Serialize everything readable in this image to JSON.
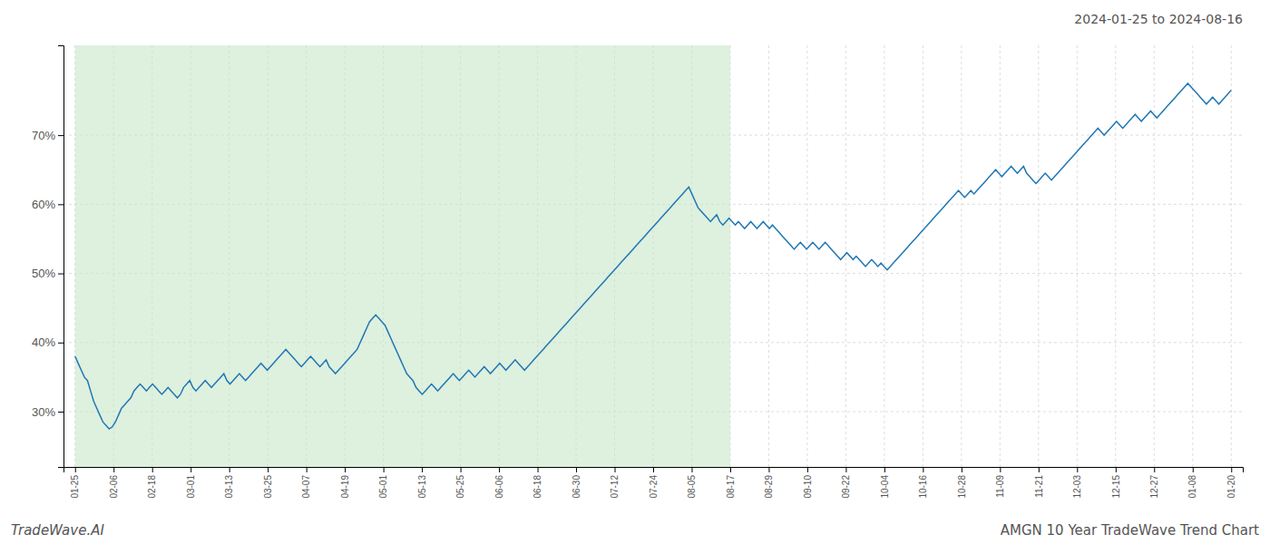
{
  "chart_data": {
    "type": "line",
    "title": "2024-01-25 to 2024-08-16",
    "annotations": [
      "TradeWave.AI",
      "AMGN 10 Year TradeWave Trend Chart"
    ],
    "color": "#1f77b4",
    "grid": true,
    "shaded_span": {
      "x": [
        0,
        211.3667
      ],
      "color": "#c8e6c8"
    },
    "xlim": [
      -3.73,
      376.73
    ],
    "xticks": [
      {
        "value": 0,
        "label": "01-25"
      },
      {
        "value": 12.4333,
        "label": "02-06"
      },
      {
        "value": 24.8667,
        "label": "02-18"
      },
      {
        "value": 37.3,
        "label": "03-01"
      },
      {
        "value": 49.7333,
        "label": "03-13"
      },
      {
        "value": 62.1667,
        "label": "03-25"
      },
      {
        "value": 74.6,
        "label": "04-07"
      },
      {
        "value": 87.0333,
        "label": "04-19"
      },
      {
        "value": 99.4667,
        "label": "05-01"
      },
      {
        "value": 111.9,
        "label": "05-13"
      },
      {
        "value": 124.3333,
        "label": "05-25"
      },
      {
        "value": 136.7667,
        "label": "06-06"
      },
      {
        "value": 149.2,
        "label": "06-18"
      },
      {
        "value": 161.6333,
        "label": "06-30"
      },
      {
        "value": 174.0667,
        "label": "07-12"
      },
      {
        "value": 186.5,
        "label": "07-24"
      },
      {
        "value": 198.9333,
        "label": "08-05"
      },
      {
        "value": 211.3667,
        "label": "08-17"
      },
      {
        "value": 223.8,
        "label": "08-29"
      },
      {
        "value": 236.2333,
        "label": "09-10"
      },
      {
        "value": 248.6667,
        "label": "09-22"
      },
      {
        "value": 261.1,
        "label": "10-04"
      },
      {
        "value": 273.5333,
        "label": "10-16"
      },
      {
        "value": 285.9667,
        "label": "10-28"
      },
      {
        "value": 298.4,
        "label": "11-09"
      },
      {
        "value": 310.8333,
        "label": "11-21"
      },
      {
        "value": 323.2667,
        "label": "12-03"
      },
      {
        "value": 335.7,
        "label": "12-15"
      },
      {
        "value": 348.1333,
        "label": "12-27"
      },
      {
        "value": 360.5667,
        "label": "01-08"
      },
      {
        "value": 373,
        "label": "01-20"
      }
    ],
    "ylim": [
      22,
      83
    ],
    "yticks": [
      {
        "value": 30,
        "label": "30%"
      },
      {
        "value": 40,
        "label": "40%"
      },
      {
        "value": 50,
        "label": "50%"
      },
      {
        "value": 60,
        "label": "60%"
      },
      {
        "value": 70,
        "label": "70%"
      }
    ],
    "x": [
      0,
      1,
      2,
      3,
      4,
      5,
      6,
      7,
      8,
      9,
      10,
      11,
      12,
      13,
      14,
      15,
      16,
      17,
      18,
      19,
      20,
      21,
      22,
      23,
      24,
      25,
      26,
      27,
      28,
      29,
      30,
      31,
      32,
      33,
      34,
      35,
      36,
      37,
      38,
      39,
      40,
      41,
      42,
      43,
      44,
      45,
      46,
      47,
      48,
      49,
      50,
      51,
      52,
      53,
      54,
      55,
      56,
      57,
      58,
      59,
      60,
      61,
      62,
      63,
      64,
      65,
      66,
      67,
      68,
      69,
      70,
      71,
      72,
      73,
      74,
      75,
      76,
      77,
      78,
      79,
      80,
      81,
      82,
      83,
      84,
      85,
      86,
      87,
      88,
      89,
      90,
      91,
      92,
      93,
      94,
      95,
      96,
      97,
      98,
      99,
      100,
      101,
      102,
      103,
      104,
      105,
      106,
      107,
      108,
      109,
      110,
      111,
      112,
      113,
      114,
      115,
      116,
      117,
      118,
      119,
      120,
      121,
      122,
      123,
      124,
      125,
      126,
      127,
      128,
      129,
      130,
      131,
      132,
      133,
      134,
      135,
      136,
      137,
      138,
      139,
      140,
      141,
      142,
      143,
      144,
      145,
      146,
      147,
      148,
      149,
      150,
      151,
      152,
      153,
      154,
      155,
      156,
      157,
      158,
      159,
      160,
      161,
      162,
      163,
      164,
      165,
      166,
      167,
      168,
      169,
      170,
      171,
      172,
      173,
      174,
      175,
      176,
      177,
      178,
      179,
      180,
      181,
      182,
      183,
      184,
      185,
      186,
      187,
      188,
      189,
      190,
      191,
      192,
      193,
      194,
      195,
      196,
      197,
      198,
      199,
      200,
      201,
      202,
      203,
      204,
      205,
      206,
      207,
      208,
      209,
      210,
      211,
      212,
      213,
      214,
      215,
      216,
      217,
      218,
      219,
      220,
      221,
      222,
      223,
      224,
      225,
      226,
      227,
      228,
      229,
      230,
      231,
      232,
      233,
      234,
      235,
      236,
      237,
      238,
      239,
      240,
      241,
      242,
      243,
      244,
      245,
      246,
      247,
      248,
      249,
      250,
      251,
      252,
      253,
      254,
      255,
      256,
      257,
      258,
      259,
      260,
      261,
      262,
      263,
      264,
      265,
      266,
      267,
      268,
      269,
      270,
      271,
      272,
      273,
      274,
      275,
      276,
      277,
      278,
      279,
      280,
      281,
      282,
      283,
      284,
      285,
      286,
      287,
      288,
      289,
      290,
      291,
      292,
      293,
      294,
      295,
      296,
      297,
      298,
      299,
      300,
      301,
      302,
      303,
      304,
      305,
      306,
      307,
      308,
      309,
      310,
      311,
      312,
      313,
      314,
      315,
      316,
      317,
      318,
      319,
      320,
      321,
      322,
      323,
      324,
      325,
      326,
      327,
      328,
      329,
      330,
      331,
      332,
      333,
      334,
      335,
      336,
      337,
      338,
      339,
      340,
      341,
      342,
      343,
      344,
      345,
      346,
      347,
      348,
      349,
      350,
      351,
      352,
      353,
      354,
      355,
      356,
      357,
      358,
      359,
      360,
      361,
      362,
      363,
      364,
      365,
      366,
      367,
      368,
      369,
      370,
      371,
      372,
      373
    ],
    "values": [
      38.0,
      37.0,
      36.0,
      35.0,
      34.5,
      33.0,
      31.5,
      30.5,
      29.5,
      28.5,
      28.0,
      27.5,
      27.8,
      28.5,
      29.5,
      30.5,
      31.0,
      31.5,
      32.0,
      33.0,
      33.5,
      34.0,
      33.5,
      33.0,
      33.5,
      34.0,
      33.5,
      33.0,
      32.5,
      33.0,
      33.5,
      33.0,
      32.5,
      32.0,
      32.5,
      33.5,
      34.0,
      34.5,
      33.5,
      33.0,
      33.5,
      34.0,
      34.5,
      34.0,
      33.5,
      34.0,
      34.5,
      35.0,
      35.5,
      34.5,
      34.0,
      34.5,
      35.0,
      35.5,
      35.0,
      34.5,
      35.0,
      35.5,
      36.0,
      36.5,
      37.0,
      36.5,
      36.0,
      36.5,
      37.0,
      37.5,
      38.0,
      38.5,
      39.0,
      38.5,
      38.0,
      37.5,
      37.0,
      36.5,
      37.0,
      37.5,
      38.0,
      37.5,
      37.0,
      36.5,
      37.0,
      37.5,
      36.5,
      36.0,
      35.5,
      36.0,
      36.5,
      37.0,
      37.5,
      38.0,
      38.5,
      39.0,
      40.0,
      41.0,
      42.0,
      43.0,
      43.5,
      44.0,
      43.5,
      43.0,
      42.5,
      41.5,
      40.5,
      39.5,
      38.5,
      37.5,
      36.5,
      35.5,
      35.0,
      34.5,
      33.5,
      33.0,
      32.5,
      33.0,
      33.5,
      34.0,
      33.5,
      33.0,
      33.5,
      34.0,
      34.5,
      35.0,
      35.5,
      35.0,
      34.5,
      35.0,
      35.5,
      36.0,
      35.5,
      35.0,
      35.5,
      36.0,
      36.5,
      36.0,
      35.5,
      36.0,
      36.5,
      37.0,
      36.5,
      36.0,
      36.5,
      37.0,
      37.5,
      37.0,
      36.5,
      36.0,
      36.5,
      37.0,
      37.5,
      38.0,
      38.5,
      39.0,
      39.5,
      40.0,
      40.5,
      41.0,
      41.5,
      42.0,
      42.5,
      43.0,
      43.5,
      44.0,
      44.5,
      45.0,
      45.5,
      46.0,
      46.5,
      47.0,
      47.5,
      48.0,
      48.5,
      49.0,
      49.5,
      50.0,
      50.5,
      51.0,
      51.5,
      52.0,
      52.5,
      53.0,
      53.5,
      54.0,
      54.5,
      55.0,
      55.5,
      56.0,
      56.5,
      57.0,
      57.5,
      58.0,
      58.5,
      59.0,
      59.5,
      60.0,
      60.5,
      61.0,
      61.5,
      62.0,
      62.5,
      61.5,
      60.5,
      59.5,
      59.0,
      58.5,
      58.0,
      57.5,
      58.0,
      58.5,
      57.5,
      57.0,
      57.5,
      58.0,
      57.5,
      57.0,
      57.5,
      57.0,
      56.5,
      57.0,
      57.5,
      57.0,
      56.5,
      57.0,
      57.5,
      57.0,
      56.5,
      57.0,
      56.5,
      56.0,
      55.5,
      55.0,
      54.5,
      54.0,
      53.5,
      54.0,
      54.5,
      54.0,
      53.5,
      54.0,
      54.5,
      54.0,
      53.5,
      54.0,
      54.5,
      54.0,
      53.5,
      53.0,
      52.5,
      52.0,
      52.5,
      53.0,
      52.5,
      52.0,
      52.5,
      52.0,
      51.5,
      51.0,
      51.5,
      52.0,
      51.5,
      51.0,
      51.5,
      51.0,
      50.5,
      51.0,
      51.5,
      52.0,
      52.5,
      53.0,
      53.5,
      54.0,
      54.5,
      55.0,
      55.5,
      56.0,
      56.5,
      57.0,
      57.5,
      58.0,
      58.5,
      59.0,
      59.5,
      60.0,
      60.5,
      61.0,
      61.5,
      62.0,
      61.5,
      61.0,
      61.5,
      62.0,
      61.5,
      62.0,
      62.5,
      63.0,
      63.5,
      64.0,
      64.5,
      65.0,
      64.5,
      64.0,
      64.5,
      65.0,
      65.5,
      65.0,
      64.5,
      65.0,
      65.5,
      64.5,
      64.0,
      63.5,
      63.0,
      63.5,
      64.0,
      64.5,
      64.0,
      63.5,
      64.0,
      64.5,
      65.0,
      65.5,
      66.0,
      66.5,
      67.0,
      67.5,
      68.0,
      68.5,
      69.0,
      69.5,
      70.0,
      70.5,
      71.0,
      70.5,
      70.0,
      70.5,
      71.0,
      71.5,
      72.0,
      71.5,
      71.0,
      71.5,
      72.0,
      72.5,
      73.0,
      72.5,
      72.0,
      72.5,
      73.0,
      73.5,
      73.0,
      72.5,
      73.0,
      73.5,
      74.0,
      74.5,
      75.0,
      75.5,
      76.0,
      76.5,
      77.0,
      77.5,
      77.0,
      76.5,
      76.0,
      75.5,
      75.0,
      74.5,
      75.0,
      75.5,
      75.0,
      74.5,
      75.0,
      75.5,
      76.0,
      76.5
    ]
  }
}
